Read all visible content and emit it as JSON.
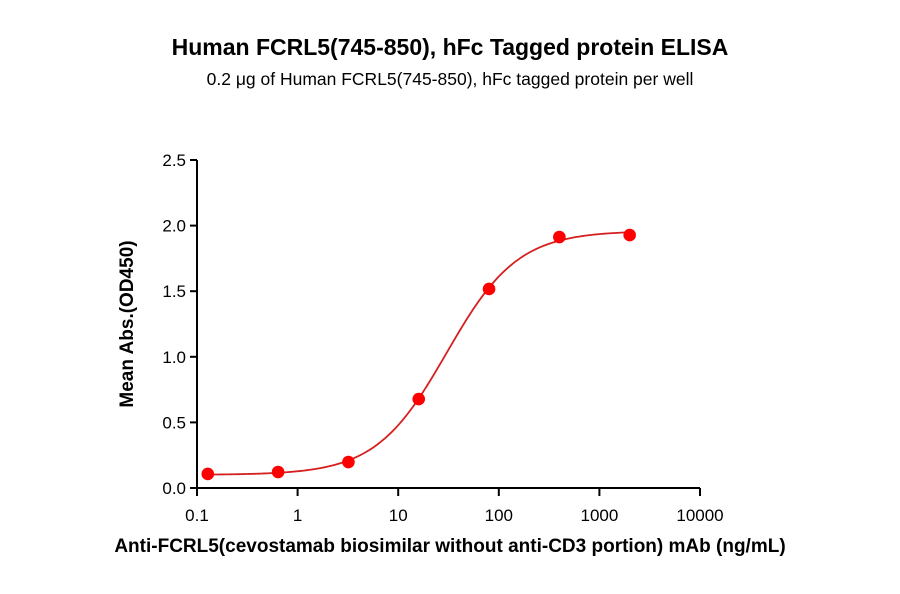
{
  "chart_data": {
    "type": "scatter",
    "title": "Human FCRL5(745-850), hFc Tagged protein ELISA",
    "subtitle": "0.2 μg of Human FCRL5(745-850), hFc tagged protein per well",
    "xlabel": "Anti-FCRL5(cevostamab biosimilar without anti-CD3 portion) mAb (ng/mL)",
    "ylabel": "Mean Abs.(OD450)",
    "xscale": "log",
    "xlim": [
      0.1,
      10000
    ],
    "ylim": [
      0,
      2.5
    ],
    "xticks": [
      "0.1",
      "1",
      "10",
      "100",
      "1000",
      "10000"
    ],
    "yticks": [
      "0.0",
      "0.5",
      "1.0",
      "1.5",
      "2.0",
      "2.5"
    ],
    "grid": false,
    "legend": null,
    "series": [
      {
        "name": "Mean Abs.(OD450)",
        "x": [
          0.128,
          0.64,
          3.2,
          16,
          80,
          400,
          2000
        ],
        "y": [
          0.107,
          0.122,
          0.198,
          0.678,
          1.517,
          1.913,
          1.928
        ],
        "marker_color": "#FF0000",
        "fit": {
          "model": "4PL",
          "bottom": 0.1,
          "top": 1.96,
          "ec50": 30.3,
          "hill": 1.23,
          "line_color": "#D42020"
        }
      }
    ]
  }
}
